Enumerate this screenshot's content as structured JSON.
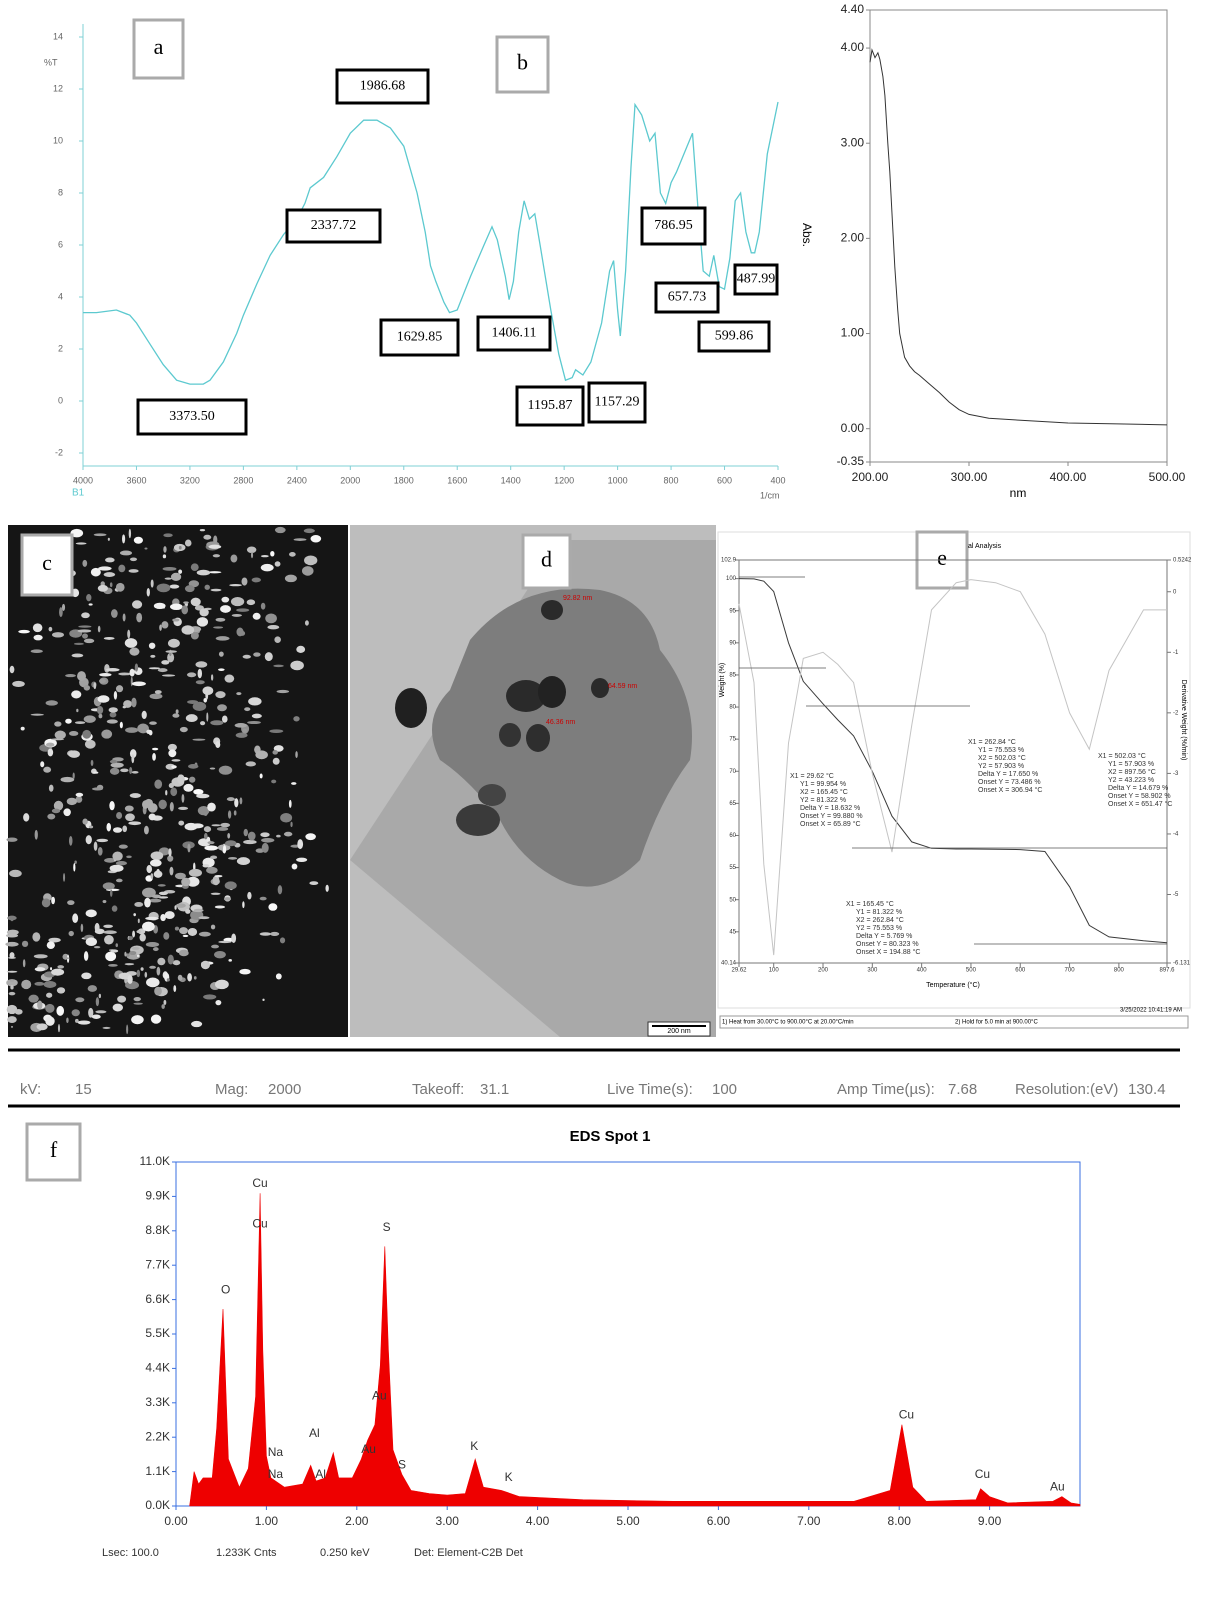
{
  "panel_labels": [
    "a",
    "b",
    "c",
    "d",
    "e",
    "f"
  ],
  "chart_data": [
    {
      "type": "line",
      "y_label": "%T",
      "x_label": "1/cm",
      "x_scale": "piecewise",
      "xlim": [
        4000,
        400
      ],
      "xticks": [
        4000,
        3600,
        3200,
        2800,
        2400,
        2000,
        1800,
        1600,
        1400,
        1200,
        1000,
        800,
        600,
        400
      ],
      "ylim": [
        -2.5,
        14.5
      ],
      "yticks": [
        -2,
        0,
        2,
        4,
        6,
        8,
        10,
        12,
        14
      ],
      "x": [
        4000,
        3900,
        3750,
        3650,
        3600,
        3500,
        3400,
        3300,
        3200,
        3100,
        3050,
        2950,
        2850,
        2800,
        2700,
        2600,
        2500,
        2400,
        2340,
        2300,
        2200,
        2100,
        2000,
        1950,
        1900,
        1850,
        1800,
        1750,
        1720,
        1700,
        1680,
        1650,
        1629,
        1600,
        1550,
        1500,
        1470,
        1450,
        1420,
        1406,
        1390,
        1370,
        1350,
        1330,
        1310,
        1290,
        1250,
        1220,
        1195,
        1170,
        1157,
        1130,
        1100,
        1060,
        1030,
        1015,
        1000,
        990,
        970,
        950,
        935,
        910,
        880,
        860,
        840,
        820,
        800,
        780,
        740,
        720,
        700,
        680,
        657,
        640,
        620,
        600,
        580,
        560,
        540,
        520,
        500,
        487,
        470,
        440,
        400
      ],
      "series": [
        {
          "name": "B1",
          "color": "#5cc9cf",
          "values": [
            3.4,
            3.4,
            3.5,
            3.3,
            3.0,
            2.2,
            1.4,
            0.8,
            0.65,
            0.65,
            0.8,
            1.5,
            2.6,
            3.3,
            4.5,
            5.6,
            6.4,
            7.0,
            7.6,
            8.2,
            8.6,
            9.4,
            10.3,
            10.8,
            10.8,
            10.5,
            9.8,
            8.0,
            6.5,
            5.2,
            4.6,
            3.8,
            3.4,
            3.5,
            4.8,
            6.0,
            6.7,
            6.2,
            4.8,
            3.9,
            4.6,
            6.5,
            7.7,
            7.0,
            7.2,
            6.0,
            3.5,
            1.8,
            0.8,
            0.9,
            1.2,
            1.0,
            1.5,
            3.0,
            5.0,
            5.4,
            3.5,
            2.5,
            5.0,
            9.0,
            11.4,
            11.0,
            10.0,
            10.3,
            8.0,
            7.6,
            8.4,
            8.8,
            9.8,
            10.3,
            7.5,
            5.0,
            4.8,
            5.6,
            4.4,
            4.3,
            5.5,
            7.7,
            8.0,
            6.5,
            5.7,
            5.7,
            6.5,
            9.5,
            11.5
          ]
        }
      ],
      "annotations": [
        "3373.50",
        "2337.72",
        "1986.68",
        "1629.85",
        "1406.11",
        "1195.87",
        "1157.29",
        "786.95",
        "657.73",
        "599.86",
        "487.99"
      ]
    },
    {
      "type": "line",
      "y_label": "Abs.",
      "x_label": "nm",
      "xlim": [
        200,
        500
      ],
      "xticks": [
        {
          "value": 200,
          "label": "200.00"
        },
        {
          "value": 300,
          "label": "300.00"
        },
        {
          "value": 400,
          "label": "400.00"
        },
        {
          "value": 500,
          "label": "500.00"
        }
      ],
      "ylim": [
        -0.35,
        4.4
      ],
      "yticks": [
        -0.35,
        {
          "value": 0,
          "label": "0.00"
        },
        {
          "value": 1,
          "label": "1.00"
        },
        {
          "value": 2,
          "label": "2.00"
        },
        {
          "value": 3,
          "label": "3.00"
        },
        {
          "value": 4,
          "label": "4.00"
        },
        {
          "value": 4.4,
          "label": "4.40"
        }
      ],
      "x": [
        200,
        202,
        205,
        208,
        210,
        213,
        215,
        218,
        220,
        223,
        225,
        228,
        230,
        235,
        240,
        245,
        250,
        260,
        270,
        280,
        290,
        300,
        320,
        350,
        400,
        450,
        500
      ],
      "series": [
        {
          "color": "#333333",
          "values": [
            3.85,
            3.98,
            3.9,
            3.95,
            3.88,
            3.7,
            3.5,
            3.0,
            2.7,
            2.1,
            1.7,
            1.25,
            1.0,
            0.75,
            0.66,
            0.6,
            0.56,
            0.47,
            0.38,
            0.28,
            0.2,
            0.15,
            0.11,
            0.09,
            0.06,
            0.05,
            0.04
          ]
        }
      ]
    },
    {
      "type": "line",
      "title": "al Analysis",
      "y_label": "Weight (%)",
      "y2_label": "Derivative Weight (%/min)",
      "x_label": "Temperature (°C)",
      "xlim": [
        29.62,
        897.6
      ],
      "xticks": [
        29.62,
        100,
        200,
        300,
        400,
        500,
        600,
        700,
        800,
        897.6
      ],
      "ylim": [
        40.14,
        102.9
      ],
      "yticks": [
        102.9,
        100,
        95,
        90,
        85,
        80,
        75,
        70,
        65,
        60,
        55,
        50,
        45,
        40.14
      ],
      "y2lim": [
        -6.131,
        0.5242
      ],
      "y2ticks": [
        0.5242,
        0,
        -1,
        -2,
        -3,
        -4,
        -5,
        -6.131
      ],
      "x": [
        29.62,
        60,
        80,
        100,
        130,
        160,
        200,
        230,
        262,
        300,
        340,
        380,
        420,
        470,
        500,
        550,
        600,
        650,
        700,
        740,
        780,
        850,
        897.6
      ],
      "series": [
        {
          "color": "#3a3a3a",
          "values": [
            100,
            99.95,
            99.6,
            98,
            90,
            84,
            80.5,
            78,
            75.5,
            70,
            63,
            59,
            58,
            57.9,
            57.9,
            57.85,
            57.8,
            57.5,
            52,
            46,
            44.2,
            43.6,
            43.3
          ]
        },
        {
          "color": "#c4c4c4",
          "axis": "y2",
          "values": [
            -0.2,
            -1.5,
            -4.5,
            -6.0,
            -2.5,
            -1.1,
            -1.0,
            -1.2,
            -1.5,
            -3.0,
            -4.3,
            -2.2,
            -0.3,
            0.15,
            0.2,
            0.15,
            0.0,
            -0.7,
            -2.0,
            -2.6,
            -1.3,
            -0.3,
            -0.3
          ]
        }
      ],
      "annotations": [
        [
          "X1 = 262.84 °C",
          "Y1 = 75.553 %",
          "X2 = 502.03 °C",
          "Y2 = 57.903 %",
          "Delta Y = 17.650 %",
          "Onset Y = 73.486 %",
          "Onset X = 306.94 °C"
        ],
        [
          "X1 = 502.03 °C",
          "Y1 = 57.903 %",
          "X2 = 897.56 °C",
          "Y2 = 43.223 %",
          "Delta Y = 14.679 %",
          "Onset Y = 58.902 %",
          "Onset X = 651.47 °C"
        ],
        [
          "X1 = 29.62 °C",
          "Y1 = 99.954 %",
          "X2 = 165.45 °C",
          "Y2 = 81.322 %",
          "Delta Y = 18.632 %",
          "Onset Y = 99.880 %",
          "Onset X = 65.89 °C"
        ],
        [
          "X1 = 165.45 °C",
          "Y1 = 81.322 %",
          "X2 = 262.84 °C",
          "Y2 = 75.553 %",
          "Delta Y = 5.769 %",
          "Onset Y = 80.323 %",
          "Onset X = 194.88 °C"
        ]
      ],
      "timestamp": "3/25/2022 10:41:19 AM",
      "method_steps": [
        "1)  Heat from 30.00°C to 900.00°C at 20.00°C/min",
        "2)  Hold for 5.0 min at 900.00°C"
      ]
    },
    {
      "type": "area",
      "title": "EDS Spot 1",
      "xlim": [
        0,
        10
      ],
      "xticks": [
        {
          "value": 0,
          "label": "0.00"
        },
        {
          "value": 1,
          "label": "1.00"
        },
        {
          "value": 2,
          "label": "2.00"
        },
        {
          "value": 3,
          "label": "3.00"
        },
        {
          "value": 4,
          "label": "4.00"
        },
        {
          "value": 5,
          "label": "5.00"
        },
        {
          "value": 6,
          "label": "6.00"
        },
        {
          "value": 7,
          "label": "7.00"
        },
        {
          "value": 8,
          "label": "8.00"
        },
        {
          "value": 9,
          "label": "9.00"
        }
      ],
      "ylim": [
        0,
        11000
      ],
      "yticks": [
        {
          "value": 0,
          "label": "0.0K"
        },
        {
          "value": 1100,
          "label": "1.1K"
        },
        {
          "value": 2200,
          "label": "2.2K"
        },
        {
          "value": 3300,
          "label": "3.3K"
        },
        {
          "value": 4400,
          "label": "4.4K"
        },
        {
          "value": 5500,
          "label": "5.5K"
        },
        {
          "value": 6600,
          "label": "6.6K"
        },
        {
          "value": 7700,
          "label": "7.7K"
        },
        {
          "value": 8800,
          "label": "8.8K"
        },
        {
          "value": 9900,
          "label": "9.9K"
        },
        {
          "value": 11000,
          "label": "11.0K"
        }
      ],
      "x": [
        0.15,
        0.2,
        0.25,
        0.3,
        0.4,
        0.45,
        0.52,
        0.58,
        0.7,
        0.8,
        0.88,
        0.93,
        0.96,
        1.0,
        1.05,
        1.2,
        1.4,
        1.49,
        1.55,
        1.65,
        1.74,
        1.8,
        1.95,
        2.05,
        2.12,
        2.2,
        2.26,
        2.31,
        2.35,
        2.4,
        2.5,
        2.6,
        2.8,
        3.0,
        3.2,
        3.31,
        3.4,
        3.6,
        3.8,
        4.5,
        5.5,
        6.5,
        7.5,
        7.9,
        8.03,
        8.15,
        8.3,
        8.85,
        8.9,
        9.0,
        9.2,
        9.7,
        9.8,
        9.9,
        10.0
      ],
      "series": [
        {
          "color": "#ee0000",
          "values": [
            0,
            1100,
            700,
            900,
            900,
            2500,
            6300,
            1500,
            600,
            1200,
            3500,
            10000,
            5000,
            1600,
            900,
            600,
            700,
            1300,
            800,
            900,
            1700,
            900,
            900,
            1500,
            2100,
            2600,
            4500,
            8300,
            5000,
            1800,
            1000,
            500,
            400,
            350,
            400,
            1500,
            600,
            500,
            300,
            200,
            150,
            150,
            150,
            500,
            2600,
            600,
            150,
            200,
            550,
            300,
            100,
            150,
            300,
            100,
            50
          ]
        }
      ],
      "peak_labels": [
        "Cu",
        "Cu",
        "O",
        "S",
        "Au",
        "Al",
        "Au",
        "Na",
        "Na",
        "Al",
        "S",
        "K",
        "K",
        "Cu",
        "Cu",
        "Au"
      ]
    }
  ],
  "tem_image": {
    "measurements": [
      "92.82 nm",
      "64.59 nm",
      "46.36 nm"
    ],
    "scale_bar": "200 nm"
  },
  "eds_header": [
    {
      "label": "kV:",
      "value": "15"
    },
    {
      "label": "Mag:",
      "value": "2000"
    },
    {
      "label": "Takeoff:",
      "value": "31.1"
    },
    {
      "label": "Live Time(s):",
      "value": "100"
    },
    {
      "label": "Amp Time(µs):",
      "value": "7.68"
    },
    {
      "label": "Resolution:(eV)",
      "value": "130.4"
    }
  ],
  "eds_footer": [
    "Lsec: 100.0",
    "1.233K Cnts",
    "0.250 keV",
    "Det: Element-C2B Det"
  ]
}
